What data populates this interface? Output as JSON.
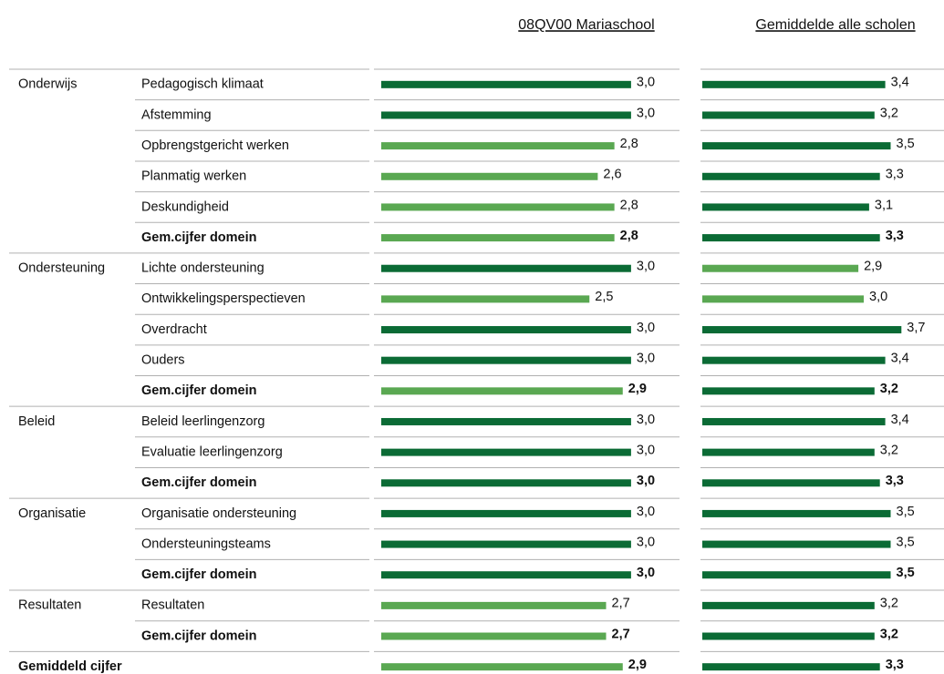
{
  "chart_data": {
    "type": "bar",
    "rows": [
      {
        "domain": "Onderwijs",
        "label": "Pedagogisch klimaat"
      },
      {
        "label": "Afstemming"
      },
      {
        "label": "Opbrengstgericht werken"
      },
      {
        "label": "Planmatig werken"
      },
      {
        "label": "Deskundigheid"
      },
      {
        "label": "Gem.cijfer domein",
        "bold": true
      },
      {
        "domain": "Ondersteuning",
        "label": "Lichte ondersteuning"
      },
      {
        "label": "Ontwikkelingsperspectieven"
      },
      {
        "label": "Overdracht"
      },
      {
        "label": "Ouders"
      },
      {
        "label": "Gem.cijfer domein",
        "bold": true
      },
      {
        "domain": "Beleid",
        "label": "Beleid leerlingenzorg"
      },
      {
        "label": "Evaluatie leerlingenzorg"
      },
      {
        "label": "Gem.cijfer domein",
        "bold": true
      },
      {
        "domain": "Organisatie",
        "label": "Organisatie ondersteuning"
      },
      {
        "label": "Ondersteuningsteams"
      },
      {
        "label": "Gem.cijfer domein",
        "bold": true
      },
      {
        "domain": "Resultaten",
        "label": "Resultaten"
      },
      {
        "label": "Gem.cijfer domein",
        "bold": true
      },
      {
        "domain": "Gemiddeld cijfer",
        "bold": true
      }
    ],
    "series": [
      {
        "name": "08QV00 Mariaschool",
        "values": [
          3.0,
          3.0,
          2.8,
          2.6,
          2.8,
          2.8,
          3.0,
          2.5,
          3.0,
          3.0,
          2.9,
          3.0,
          3.0,
          3.0,
          3.0,
          3.0,
          3.0,
          2.7,
          2.7,
          2.9
        ],
        "value_labels": [
          "3,0",
          "3,0",
          "2,8",
          "2,6",
          "2,8",
          "2,8",
          "3,0",
          "2,5",
          "3,0",
          "3,0",
          "2,9",
          "3,0",
          "3,0",
          "3,0",
          "3,0",
          "3,0",
          "3,0",
          "2,7",
          "2,7",
          "2,9"
        ],
        "colors": [
          "#0b6b35",
          "#0b6b35",
          "#5aa852",
          "#5aa852",
          "#5aa852",
          "#5aa852",
          "#0b6b35",
          "#5aa852",
          "#0b6b35",
          "#0b6b35",
          "#5aa852",
          "#0b6b35",
          "#0b6b35",
          "#0b6b35",
          "#0b6b35",
          "#0b6b35",
          "#0b6b35",
          "#5aa852",
          "#5aa852",
          "#5aa852"
        ]
      },
      {
        "name": "Gemiddelde alle scholen",
        "values": [
          3.4,
          3.2,
          3.5,
          3.3,
          3.1,
          3.3,
          2.9,
          3.0,
          3.7,
          3.4,
          3.2,
          3.4,
          3.2,
          3.3,
          3.5,
          3.5,
          3.5,
          3.2,
          3.2,
          3.3
        ],
        "value_labels": [
          "3,4",
          "3,2",
          "3,5",
          "3,3",
          "3,1",
          "3,3",
          "2,9",
          "3,0",
          "3,7",
          "3,4",
          "3,2",
          "3,4",
          "3,2",
          "3,3",
          "3,5",
          "3,5",
          "3,5",
          "3,2",
          "3,2",
          "3,3"
        ],
        "colors": [
          "#0b6b35",
          "#0b6b35",
          "#0b6b35",
          "#0b6b35",
          "#0b6b35",
          "#0b6b35",
          "#5aa852",
          "#5aa852",
          "#0b6b35",
          "#0b6b35",
          "#0b6b35",
          "#0b6b35",
          "#0b6b35",
          "#0b6b35",
          "#0b6b35",
          "#0b6b35",
          "#0b6b35",
          "#0b6b35",
          "#0b6b35",
          "#0b6b35"
        ]
      }
    ]
  }
}
